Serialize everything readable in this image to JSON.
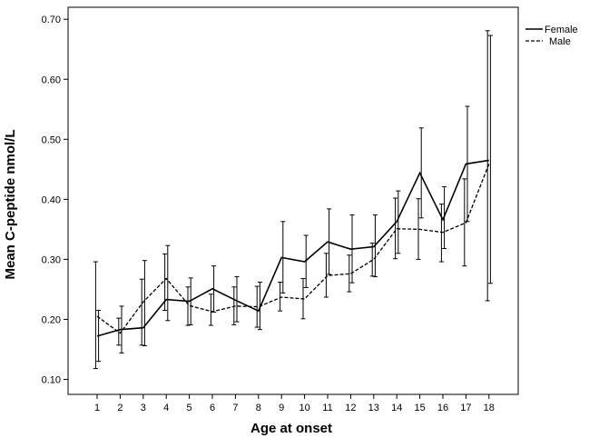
{
  "chart_data": {
    "type": "line",
    "title": "",
    "xlabel": "Age at onset",
    "ylabel": "Mean C-peptide nmol/L",
    "x": [
      1,
      2,
      3,
      4,
      5,
      6,
      7,
      8,
      9,
      10,
      11,
      12,
      13,
      14,
      15,
      16,
      17,
      18
    ],
    "x_tick_labels": [
      "1",
      "2",
      "3",
      "4",
      "5",
      "6",
      "7",
      "8",
      "9",
      "10",
      "11",
      "12",
      "13",
      "14",
      "15",
      "16",
      "17",
      "18"
    ],
    "ylim": [
      0.075,
      0.72
    ],
    "y_ticks": [
      0.1,
      0.2,
      0.3,
      0.4,
      0.5,
      0.6,
      0.7
    ],
    "y_tick_labels": [
      "0.10",
      "0.20",
      "0.30",
      "0.40",
      "0.50",
      "0.60",
      "0.70"
    ],
    "grid": false,
    "legend": {
      "position": "top-right"
    },
    "series": [
      {
        "name": "Female",
        "line_style": "solid",
        "values": [
          0.172,
          0.183,
          0.186,
          0.233,
          0.23,
          0.251,
          0.232,
          0.214,
          0.303,
          0.296,
          0.329,
          0.317,
          0.321,
          0.363,
          0.444,
          0.366,
          0.459,
          0.465
        ],
        "lower": [
          0.13,
          0.144,
          0.156,
          0.198,
          0.191,
          0.212,
          0.196,
          0.183,
          0.244,
          0.253,
          0.275,
          0.261,
          0.271,
          0.31,
          0.369,
          0.318,
          0.363,
          0.26
        ],
        "upper": [
          0.215,
          0.222,
          0.298,
          0.323,
          0.269,
          0.289,
          0.271,
          0.262,
          0.363,
          0.34,
          0.384,
          0.374,
          0.374,
          0.414,
          0.519,
          0.421,
          0.555,
          0.673
        ]
      },
      {
        "name": "Male",
        "line_style": "dashed",
        "values": [
          0.205,
          0.177,
          0.229,
          0.268,
          0.223,
          0.213,
          0.222,
          0.221,
          0.237,
          0.234,
          0.273,
          0.276,
          0.3,
          0.351,
          0.35,
          0.345,
          0.361,
          0.459
        ],
        "lower": [
          0.118,
          0.157,
          0.157,
          0.215,
          0.19,
          0.19,
          0.191,
          0.187,
          0.214,
          0.201,
          0.237,
          0.246,
          0.272,
          0.301,
          0.3,
          0.296,
          0.289,
          0.231
        ],
        "upper": [
          0.296,
          0.202,
          0.267,
          0.309,
          0.254,
          0.242,
          0.254,
          0.255,
          0.262,
          0.268,
          0.31,
          0.307,
          0.327,
          0.402,
          0.401,
          0.392,
          0.434,
          0.681
        ]
      }
    ]
  }
}
